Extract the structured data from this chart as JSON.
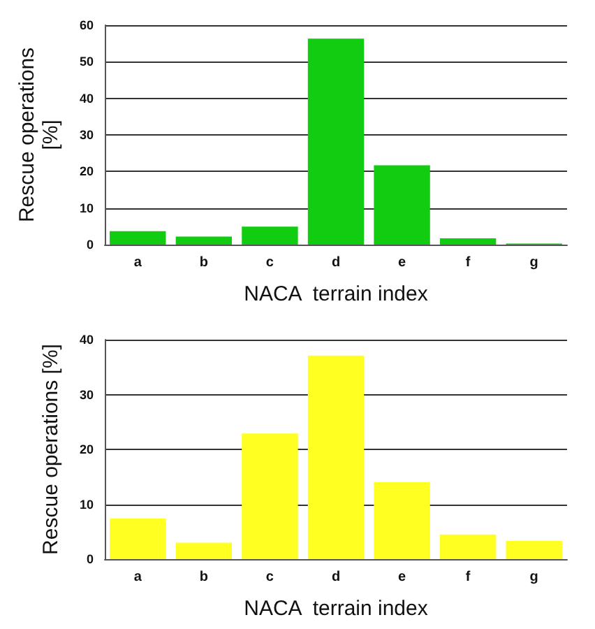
{
  "chart_data": [
    {
      "type": "bar",
      "xlabel": "NACA  terrain index",
      "ylabel": "Rescue operations\n[%]",
      "categories": [
        "a",
        "b",
        "c",
        "d",
        "e",
        "f",
        "g"
      ],
      "values": [
        3.7,
        2.2,
        4.9,
        56.3,
        21.7,
        1.7,
        0.3
      ],
      "color": "#11cc11",
      "ylim": [
        0,
        60
      ],
      "yticks": [
        0,
        10,
        20,
        30,
        40,
        50,
        60
      ],
      "grid": "y"
    },
    {
      "type": "bar",
      "xlabel": "NACA  terrain index",
      "ylabel": "Rescue operations [%]",
      "categories": [
        "a",
        "b",
        "c",
        "d",
        "e",
        "f",
        "g"
      ],
      "values": [
        7.4,
        3.0,
        22.9,
        37.1,
        14.0,
        4.5,
        3.3
      ],
      "color": "#ffff22",
      "ylim": [
        0,
        40
      ],
      "yticks": [
        0,
        10,
        20,
        30,
        40
      ],
      "grid": "y"
    }
  ]
}
